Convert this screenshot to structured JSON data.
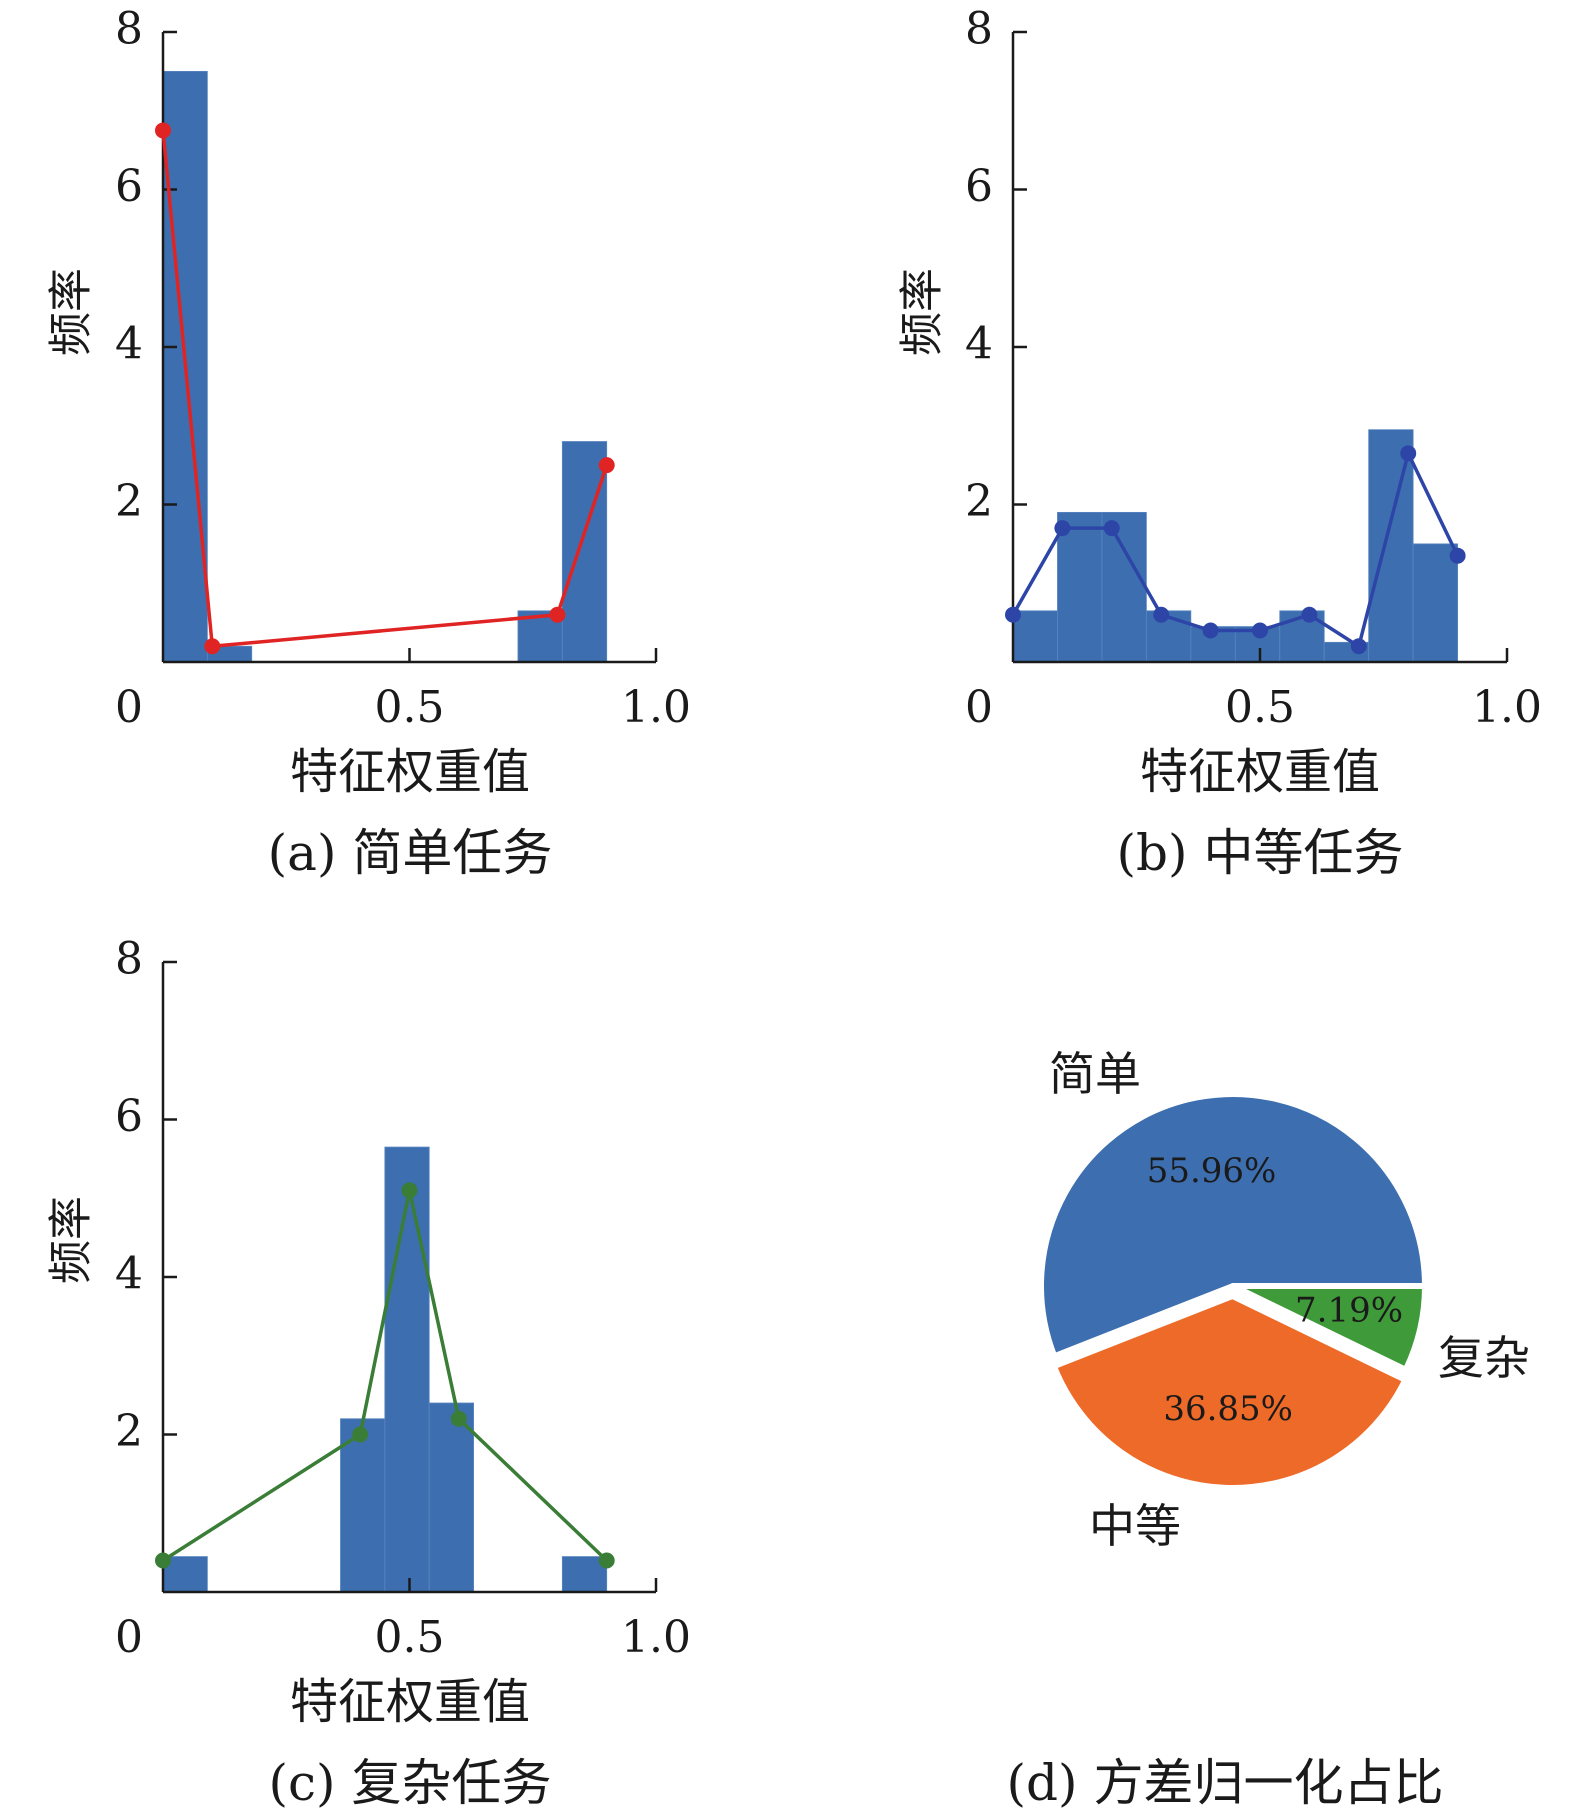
{
  "chart_data": [
    {
      "type": "bar",
      "caption": "(a) 简单任务",
      "xlabel": "特征权重值",
      "ylabel": "频率",
      "xlim": [
        0,
        1.0
      ],
      "ylim": [
        0,
        8
      ],
      "xticks": [
        "0",
        "0.5",
        "1.0"
      ],
      "yticks": [
        "2",
        "4",
        "6",
        "8"
      ],
      "bar_color": "#3d6fb0",
      "line_color": "#e02424",
      "bins": [
        {
          "x0": 0.0,
          "x1": 0.09,
          "value": 7.5
        },
        {
          "x0": 0.09,
          "x1": 0.18,
          "value": 0.2
        },
        {
          "x0": 0.72,
          "x1": 0.81,
          "value": 0.65
        },
        {
          "x0": 0.81,
          "x1": 0.9,
          "value": 2.8
        }
      ],
      "line": [
        {
          "x": 0.0,
          "y": 6.75
        },
        {
          "x": 0.1,
          "y": 0.2
        },
        {
          "x": 0.8,
          "y": 0.6
        },
        {
          "x": 0.9,
          "y": 2.5
        }
      ]
    },
    {
      "type": "bar",
      "caption": "(b) 中等任务",
      "xlabel": "特征权重值",
      "ylabel": "频率",
      "xlim": [
        0,
        1.0
      ],
      "ylim": [
        0,
        8
      ],
      "xticks": [
        "0",
        "0.5",
        "1.0"
      ],
      "yticks": [
        "2",
        "4",
        "6",
        "8"
      ],
      "bar_color": "#3d6fb0",
      "line_color": "#2e45a8",
      "bins": [
        {
          "x0": 0.0,
          "x1": 0.09,
          "value": 0.65
        },
        {
          "x0": 0.09,
          "x1": 0.18,
          "value": 1.9
        },
        {
          "x0": 0.18,
          "x1": 0.27,
          "value": 1.9
        },
        {
          "x0": 0.27,
          "x1": 0.36,
          "value": 0.65
        },
        {
          "x0": 0.36,
          "x1": 0.45,
          "value": 0.45
        },
        {
          "x0": 0.45,
          "x1": 0.54,
          "value": 0.45
        },
        {
          "x0": 0.54,
          "x1": 0.63,
          "value": 0.65
        },
        {
          "x0": 0.63,
          "x1": 0.72,
          "value": 0.25
        },
        {
          "x0": 0.72,
          "x1": 0.81,
          "value": 2.95
        },
        {
          "x0": 0.81,
          "x1": 0.9,
          "value": 1.5
        }
      ],
      "line": [
        {
          "x": 0.0,
          "y": 0.6
        },
        {
          "x": 0.1,
          "y": 1.7
        },
        {
          "x": 0.2,
          "y": 1.7
        },
        {
          "x": 0.3,
          "y": 0.6
        },
        {
          "x": 0.4,
          "y": 0.4
        },
        {
          "x": 0.5,
          "y": 0.4
        },
        {
          "x": 0.6,
          "y": 0.6
        },
        {
          "x": 0.7,
          "y": 0.2
        },
        {
          "x": 0.8,
          "y": 2.65
        },
        {
          "x": 0.9,
          "y": 1.35
        }
      ]
    },
    {
      "type": "bar",
      "caption": "(c) 复杂任务",
      "xlabel": "特征权重值",
      "ylabel": "频率",
      "xlim": [
        0,
        1.0
      ],
      "ylim": [
        0,
        8
      ],
      "xticks": [
        "0",
        "0.5",
        "1.0"
      ],
      "yticks": [
        "2",
        "4",
        "6",
        "8"
      ],
      "bar_color": "#3d6fb0",
      "line_color": "#3a7d36",
      "bins": [
        {
          "x0": 0.0,
          "x1": 0.09,
          "value": 0.45
        },
        {
          "x0": 0.36,
          "x1": 0.45,
          "value": 2.2
        },
        {
          "x0": 0.45,
          "x1": 0.54,
          "value": 5.65
        },
        {
          "x0": 0.54,
          "x1": 0.63,
          "value": 2.4
        },
        {
          "x0": 0.81,
          "x1": 0.9,
          "value": 0.45
        }
      ],
      "line": [
        {
          "x": 0.0,
          "y": 0.4
        },
        {
          "x": 0.4,
          "y": 2.0
        },
        {
          "x": 0.5,
          "y": 5.1
        },
        {
          "x": 0.6,
          "y": 2.2
        },
        {
          "x": 0.9,
          "y": 0.4
        }
      ]
    },
    {
      "type": "pie",
      "caption": "(d) 方差归一化占比",
      "slices": [
        {
          "label": "简单",
          "pct_label": "55.96%",
          "value": 55.96,
          "color": "#3d6fb0"
        },
        {
          "label": "复杂",
          "pct_label": "7.19%",
          "value": 7.19,
          "color": "#3f9a3a"
        },
        {
          "label": "中等",
          "pct_label": "36.85%",
          "value": 36.85,
          "color": "#ee6a28"
        }
      ]
    }
  ]
}
